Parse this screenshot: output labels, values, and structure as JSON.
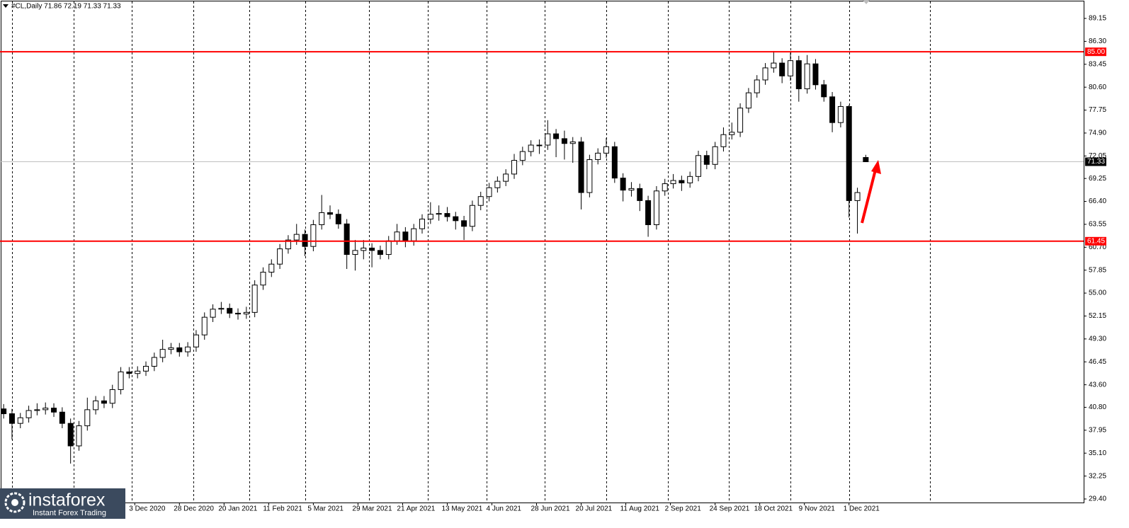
{
  "chart_data": {
    "type": "candlestick",
    "title": "#CL,Daily  71.86 72.19 71.33 71.33",
    "x": [
      0,
      3,
      6,
      9,
      12,
      15,
      18,
      21,
      24,
      27,
      30,
      33,
      36,
      39,
      42,
      45,
      48,
      51,
      54,
      57,
      60,
      63,
      66,
      69,
      72,
      75,
      78,
      81,
      84,
      87,
      90,
      93,
      96,
      99,
      102,
      105,
      108,
      111,
      114,
      117,
      120,
      123,
      126,
      129,
      132,
      135,
      138,
      141,
      144,
      147,
      150,
      153,
      156,
      159,
      162,
      165,
      168,
      171,
      174,
      177,
      180,
      183,
      186,
      189,
      192,
      195,
      198,
      201,
      204,
      207,
      210,
      213,
      216,
      219,
      222,
      225,
      228,
      231,
      234,
      237,
      240,
      243,
      246,
      249,
      252,
      255,
      258,
      261,
      264,
      267,
      270,
      273,
      276,
      279,
      282,
      285,
      288,
      291,
      294,
      297,
      300,
      303,
      306,
      309
    ],
    "open": [
      40.6,
      40.0,
      38.8,
      39.5,
      40.4,
      40.5,
      40.7,
      40.2,
      38.8,
      36.0,
      38.5,
      40.5,
      41.6,
      41.3,
      43.0,
      45.2,
      45.0,
      45.3,
      45.9,
      47.0,
      48.0,
      48.2,
      47.7,
      48.3,
      49.8,
      52.0,
      53.0,
      53.1,
      52.5,
      52.4,
      52.6,
      56.0,
      57.6,
      58.6,
      60.5,
      61.6,
      62.3,
      60.8,
      63.5,
      65.0,
      64.8,
      63.6,
      59.8,
      60.3,
      60.6,
      60.3,
      59.8,
      61.5,
      62.6,
      61.5,
      63.0,
      64.2,
      64.8,
      64.9,
      64.5,
      64.0,
      63.3,
      65.9,
      67.0,
      68.1,
      68.9,
      69.8,
      71.5,
      72.6,
      73.4,
      73.4,
      74.8,
      74.2,
      73.6,
      73.8,
      67.5,
      71.6,
      72.4,
      73.2,
      69.3,
      67.8,
      68.0,
      66.5,
      63.5,
      67.7,
      68.6,
      69.0,
      68.7,
      69.5,
      72.1,
      71.0,
      73.2,
      74.7,
      75.0,
      78.0,
      79.9,
      81.5,
      83.0,
      83.6,
      82.0,
      83.9,
      80.4,
      83.5,
      80.9,
      79.4,
      76.2,
      78.2,
      66.5,
      71.86
    ],
    "high": [
      41.2,
      40.6,
      40.1,
      41.0,
      41.3,
      41.4,
      41.3,
      40.8,
      39.4,
      39.1,
      42.0,
      42.2,
      42.2,
      43.6,
      45.8,
      45.8,
      45.9,
      46.5,
      47.6,
      49.2,
      48.8,
      48.8,
      48.9,
      50.4,
      52.6,
      53.6,
      53.9,
      53.7,
      53.1,
      53.3,
      56.6,
      58.2,
      59.2,
      61.1,
      62.2,
      63.6,
      62.9,
      64.1,
      67.2,
      65.9,
      65.4,
      64.2,
      61.6,
      61.6,
      61.2,
      60.9,
      62.1,
      63.6,
      63.2,
      63.6,
      64.8,
      66.3,
      65.9,
      65.7,
      65.1,
      64.6,
      66.5,
      67.6,
      68.7,
      69.5,
      70.4,
      72.3,
      73.2,
      74.0,
      74.1,
      76.5,
      75.4,
      75.2,
      74.4,
      74.4,
      72.2,
      73.0,
      74.3,
      73.8,
      69.9,
      68.8,
      68.6,
      67.1,
      68.3,
      69.2,
      69.8,
      69.6,
      70.1,
      72.7,
      72.7,
      73.8,
      75.6,
      76.2,
      78.6,
      80.5,
      82.1,
      83.6,
      85.1,
      84.2,
      84.9,
      84.5,
      84.6,
      84.1,
      81.5,
      80.0,
      78.8,
      78.4,
      68.1,
      72.19
    ],
    "low": [
      39.4,
      36.8,
      38.2,
      38.9,
      39.8,
      39.9,
      39.6,
      38.2,
      33.8,
      35.4,
      37.9,
      39.9,
      40.7,
      40.7,
      42.4,
      44.4,
      44.4,
      44.7,
      45.3,
      46.4,
      47.4,
      47.1,
      47.1,
      47.7,
      49.2,
      51.4,
      52.4,
      51.9,
      51.7,
      51.8,
      52.0,
      55.4,
      57.0,
      58.0,
      59.9,
      61.0,
      59.6,
      60.2,
      62.9,
      64.2,
      63.0,
      58.0,
      57.8,
      59.2,
      58.2,
      59.2,
      59.2,
      61.0,
      60.7,
      60.9,
      62.4,
      63.6,
      64.0,
      63.9,
      62.9,
      61.6,
      62.7,
      65.3,
      66.4,
      67.5,
      68.3,
      69.2,
      70.9,
      72.0,
      72.3,
      72.8,
      71.9,
      71.6,
      71.2,
      65.4,
      66.9,
      71.0,
      71.8,
      68.7,
      66.4,
      67.0,
      65.2,
      62.0,
      62.9,
      67.1,
      68.0,
      67.7,
      68.1,
      68.9,
      70.4,
      70.4,
      72.6,
      74.1,
      74.4,
      77.4,
      79.3,
      80.9,
      82.4,
      81.1,
      81.4,
      78.8,
      79.8,
      80.3,
      78.8,
      75.0,
      75.6,
      64.4,
      62.4,
      71.33
    ],
    "close": [
      40.0,
      38.8,
      39.5,
      40.4,
      40.5,
      40.7,
      40.2,
      38.8,
      36.0,
      38.5,
      40.5,
      41.6,
      41.3,
      43.0,
      45.2,
      45.0,
      45.3,
      45.9,
      47.0,
      48.0,
      48.2,
      47.7,
      48.3,
      49.8,
      52.0,
      53.0,
      53.1,
      52.5,
      52.4,
      52.6,
      56.0,
      57.6,
      58.6,
      60.5,
      61.6,
      62.3,
      60.8,
      63.5,
      65.0,
      64.8,
      63.6,
      59.8,
      60.3,
      60.6,
      60.3,
      59.8,
      61.5,
      62.6,
      61.5,
      63.0,
      64.2,
      64.8,
      64.9,
      64.5,
      64.0,
      63.3,
      65.9,
      67.0,
      68.1,
      68.9,
      69.8,
      71.5,
      72.6,
      73.4,
      73.4,
      74.8,
      74.2,
      73.6,
      73.8,
      67.5,
      71.6,
      72.4,
      73.2,
      69.3,
      67.8,
      68.0,
      66.5,
      63.5,
      67.7,
      68.6,
      69.0,
      68.7,
      69.5,
      72.1,
      71.0,
      73.2,
      74.7,
      75.0,
      78.0,
      79.9,
      81.5,
      83.0,
      83.6,
      82.0,
      83.9,
      80.4,
      83.5,
      80.9,
      79.4,
      76.2,
      78.2,
      66.5,
      67.5,
      71.33
    ],
    "up_color": "#ffffff",
    "down_color": "#000000",
    "wick_color": "#000000",
    "xlim": [
      -1.3,
      387.1
    ],
    "xticks": [
      {
        "value": 47,
        "label": "3 Dec 2020"
      },
      {
        "value": 63,
        "label": "28 Dec 2020"
      },
      {
        "value": 79,
        "label": "20 Jan 2021"
      },
      {
        "value": 95,
        "label": "11 Feb 2021"
      },
      {
        "value": 111,
        "label": "5 Mar 2021"
      },
      {
        "value": 127,
        "label": "29 Mar 2021"
      },
      {
        "value": 143,
        "label": "21 Apr 2021"
      },
      {
        "value": 159,
        "label": "13 May 2021"
      },
      {
        "value": 175,
        "label": "4 Jun 2021"
      },
      {
        "value": 191,
        "label": "28 Jun 2021"
      },
      {
        "value": 207,
        "label": "20 Jul 2021"
      },
      {
        "value": 223,
        "label": "11 Aug 2021"
      },
      {
        "value": 239,
        "label": "2 Sep 2021"
      },
      {
        "value": 255,
        "label": "24 Sep 2021"
      },
      {
        "value": 271,
        "label": "18 Oct 2021"
      },
      {
        "value": 287,
        "label": "9 Nov 2021"
      },
      {
        "value": 303,
        "label": "1 Dec 2021"
      }
    ],
    "separators": [
      3,
      25,
      46,
      68,
      88,
      108,
      131,
      152,
      173,
      194,
      216,
      238,
      260,
      282,
      303,
      332
    ],
    "ylim": [
      28.96,
      91.44
    ],
    "yticks": [
      {
        "value": 29.4,
        "label": "29.40"
      },
      32.25,
      {
        "value": 35.1,
        "label": "35.10"
      },
      37.95,
      {
        "value": 40.8,
        "label": "40.80"
      },
      {
        "value": 43.6,
        "label": "43.60"
      },
      46.45,
      {
        "value": 49.3,
        "label": "49.30"
      },
      52.15,
      {
        "value": 55,
        "label": "55.00"
      },
      57.85,
      {
        "value": 60.7,
        "label": "60.70"
      },
      63.55,
      {
        "value": 66.4,
        "label": "66.40"
      },
      69.25,
      72.05,
      {
        "value": 74.9,
        "label": "74.90"
      },
      77.75,
      {
        "value": 80.6,
        "label": "80.60"
      },
      83.45,
      {
        "value": 86.3,
        "label": "86.30"
      },
      89.15
    ],
    "levels": [
      {
        "value": 85,
        "label": "85.00",
        "color": "#ff0000"
      },
      {
        "value": 61.45,
        "label": "61.45",
        "color": "#ff0000"
      }
    ],
    "current": 71.33
  },
  "logo": {
    "name": "instaforex",
    "tagline": "Instant Forex Trading"
  }
}
